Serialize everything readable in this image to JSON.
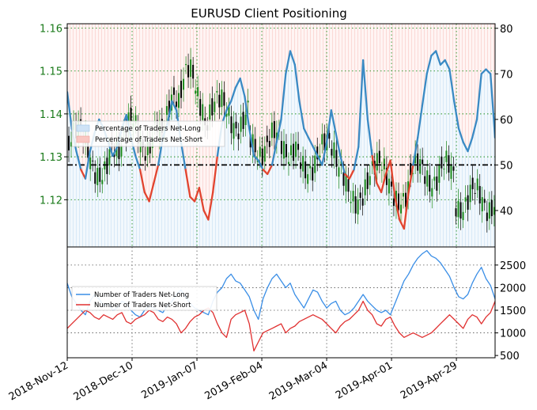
{
  "chart_data": {
    "type": "line",
    "title": "EURUSD Client Positioning",
    "x_ticks": [
      "2018-Nov-12",
      "2018-Dec-10",
      "2019-Jan-07",
      "2019-Feb-04",
      "2019-Mar-04",
      "2019-Apr-01",
      "2019-Apr-29"
    ],
    "top_panel": {
      "price_axis": {
        "label": "",
        "ticks": [
          "1.12",
          "1.13",
          "1.14",
          "1.15",
          "1.16"
        ],
        "range": [
          1.109,
          1.161
        ],
        "color": "#1a7a1a"
      },
      "percent_axis": {
        "label": "",
        "ticks": [
          "40",
          "50",
          "60",
          "70",
          "80"
        ],
        "range": [
          32,
          81
        ]
      },
      "reference_line": 50,
      "legend": {
        "placement": "upper-left",
        "entries": [
          "Percentage of Traders Net-Long",
          "Percentage of Traders Net-Short"
        ]
      },
      "series": [
        {
          "name": "Percentage of Traders Net-Long",
          "color": "#3a8ac4",
          "x": [
            0,
            2,
            4,
            6,
            8,
            10,
            12,
            14,
            16,
            18,
            20,
            22,
            24,
            26,
            28,
            30,
            32,
            34,
            36,
            38,
            40,
            42,
            44,
            46,
            48,
            50,
            52,
            54,
            56,
            58,
            60,
            62,
            64,
            66,
            68,
            70,
            72,
            74,
            76,
            78,
            80,
            82,
            84,
            86,
            88,
            90,
            92,
            94,
            96,
            98,
            100,
            102,
            104,
            106,
            108,
            110,
            112,
            114,
            116,
            118,
            120,
            122,
            124,
            126,
            128,
            130,
            132,
            134,
            136,
            138,
            140,
            142,
            144,
            146,
            148,
            150,
            152,
            154,
            156,
            158,
            160,
            162,
            164,
            166,
            168,
            170,
            172,
            174,
            176,
            178,
            180,
            182,
            184,
            186,
            188
          ],
          "values": [
            66,
            58,
            53,
            49,
            47,
            53,
            57,
            60,
            58,
            55,
            52,
            54,
            58,
            61,
            56,
            52,
            49,
            44,
            42,
            46,
            50,
            56,
            59,
            64,
            62,
            55,
            49,
            43,
            42,
            45,
            40,
            38,
            44,
            52,
            59,
            62,
            64,
            67,
            69,
            65,
            58,
            52,
            51,
            49,
            48,
            50,
            55,
            60,
            70,
            75,
            72,
            64,
            58,
            56,
            54,
            52,
            50,
            55,
            62,
            57,
            52,
            48,
            47,
            49,
            54,
            73,
            60,
            52,
            46,
            44,
            48,
            51,
            43,
            38,
            36,
            44,
            50,
            56,
            63,
            70,
            74,
            75,
            72,
            73,
            71,
            64,
            58,
            55,
            53,
            56,
            60,
            70,
            71,
            70,
            56
          ]
        },
        {
          "name": "Percentage of Traders Net-Short",
          "color": "#e2442f",
          "x": [
            0,
            2,
            4,
            6,
            8,
            10,
            12,
            14,
            16,
            18,
            20,
            22,
            24,
            26,
            28,
            30,
            32,
            34,
            36,
            38,
            40,
            42,
            44,
            46,
            48,
            50,
            52,
            54,
            56,
            58,
            60,
            62,
            64,
            66,
            68,
            70,
            72,
            74,
            76,
            78,
            80,
            82,
            84,
            86,
            88,
            90,
            92,
            94,
            96,
            98,
            100,
            102,
            104,
            106,
            108,
            110,
            112,
            114,
            116,
            118,
            120,
            122,
            124,
            126,
            128,
            130,
            132,
            134,
            136,
            138,
            140,
            142,
            144,
            146,
            148,
            150,
            152,
            154,
            156,
            158,
            160,
            162,
            164,
            166,
            168,
            170,
            172,
            174,
            176,
            178,
            180,
            182,
            184,
            186,
            188
          ],
          "values": [
            34,
            42,
            47,
            51,
            53,
            47,
            43,
            40,
            42,
            45,
            48,
            46,
            42,
            39,
            44,
            48,
            51,
            56,
            58,
            54,
            50,
            44,
            41,
            36,
            38,
            45,
            51,
            57,
            58,
            55,
            60,
            62,
            56,
            48,
            41,
            38,
            36,
            33,
            31,
            35,
            42,
            48,
            49,
            51,
            52,
            50,
            45,
            40,
            30,
            25,
            28,
            36,
            42,
            44,
            46,
            48,
            50,
            45,
            38,
            43,
            48,
            52,
            53,
            51,
            46,
            27,
            40,
            48,
            54,
            56,
            52,
            49,
            57,
            62,
            64,
            56,
            50,
            44,
            37,
            30,
            26,
            25,
            28,
            27,
            29,
            36,
            42,
            45,
            47,
            44,
            40,
            30,
            29,
            30,
            44
          ]
        }
      ]
    },
    "bottom_panel": {
      "axis": {
        "label": "",
        "ticks": [
          "500",
          "1000",
          "1500",
          "2000",
          "2500"
        ],
        "range": [
          450,
          2900
        ]
      },
      "legend": {
        "placement": "center-left",
        "entries": [
          "Number of Traders Net-Long",
          "Number of Traders Net-Short"
        ]
      },
      "series": [
        {
          "name": "Number of Traders Net-Long",
          "color": "#3a8ee6",
          "x": [
            0,
            2,
            4,
            6,
            8,
            10,
            12,
            14,
            16,
            18,
            20,
            22,
            24,
            26,
            28,
            30,
            32,
            34,
            36,
            38,
            40,
            42,
            44,
            46,
            48,
            50,
            52,
            54,
            56,
            58,
            60,
            62,
            64,
            66,
            68,
            70,
            72,
            74,
            76,
            78,
            80,
            82,
            84,
            86,
            88,
            90,
            92,
            94,
            96,
            98,
            100,
            102,
            104,
            106,
            108,
            110,
            112,
            114,
            116,
            118,
            120,
            122,
            124,
            126,
            128,
            130,
            132,
            134,
            136,
            138,
            140,
            142,
            144,
            146,
            148,
            150,
            152,
            154,
            156,
            158,
            160,
            162,
            164,
            166,
            168,
            170,
            172,
            174,
            176,
            178,
            180,
            182,
            184,
            186,
            188
          ],
          "values": [
            2100,
            1800,
            1650,
            1500,
            1400,
            1700,
            1850,
            1750,
            1600,
            1650,
            1500,
            1550,
            1700,
            1650,
            1500,
            1400,
            1350,
            1500,
            1600,
            1550,
            1500,
            1450,
            1600,
            1700,
            1850,
            1950,
            1800,
            1650,
            1550,
            1500,
            1450,
            1400,
            1700,
            1900,
            2000,
            2200,
            2300,
            2150,
            2100,
            1950,
            1800,
            1500,
            1300,
            1750,
            2000,
            2200,
            2300,
            2150,
            2000,
            2100,
            1850,
            1700,
            1550,
            1750,
            1950,
            1900,
            1700,
            1550,
            1650,
            1700,
            1500,
            1400,
            1450,
            1550,
            1700,
            1850,
            1700,
            1600,
            1500,
            1450,
            1500,
            1400,
            1650,
            1900,
            2150,
            2300,
            2500,
            2650,
            2750,
            2820,
            2700,
            2650,
            2550,
            2400,
            2250,
            2000,
            1800,
            1750,
            1850,
            2100,
            2300,
            2450,
            2200,
            2050,
            1750
          ]
        },
        {
          "name": "Number of Traders Net-Short",
          "color": "#e03030",
          "x": [
            0,
            2,
            4,
            6,
            8,
            10,
            12,
            14,
            16,
            18,
            20,
            22,
            24,
            26,
            28,
            30,
            32,
            34,
            36,
            38,
            40,
            42,
            44,
            46,
            48,
            50,
            52,
            54,
            56,
            58,
            60,
            62,
            64,
            66,
            68,
            70,
            72,
            74,
            76,
            78,
            80,
            82,
            84,
            86,
            88,
            90,
            92,
            94,
            96,
            98,
            100,
            102,
            104,
            106,
            108,
            110,
            112,
            114,
            116,
            118,
            120,
            122,
            124,
            126,
            128,
            130,
            132,
            134,
            136,
            138,
            140,
            142,
            144,
            146,
            148,
            150,
            152,
            154,
            156,
            158,
            160,
            162,
            164,
            166,
            168,
            170,
            172,
            174,
            176,
            178,
            180,
            182,
            184,
            186,
            188
          ],
          "values": [
            1100,
            1200,
            1300,
            1400,
            1500,
            1450,
            1350,
            1300,
            1400,
            1350,
            1300,
            1400,
            1450,
            1250,
            1200,
            1300,
            1350,
            1400,
            1500,
            1450,
            1300,
            1250,
            1350,
            1300,
            1200,
            1000,
            1100,
            1250,
            1350,
            1400,
            1500,
            1550,
            1450,
            1200,
            1000,
            900,
            1300,
            1400,
            1450,
            1500,
            1200,
            600,
            800,
            1000,
            1050,
            1100,
            1150,
            1200,
            1000,
            1100,
            1150,
            1250,
            1300,
            1350,
            1400,
            1350,
            1300,
            1200,
            1100,
            1000,
            1150,
            1250,
            1300,
            1400,
            1500,
            1700,
            1500,
            1400,
            1200,
            1150,
            1300,
            1350,
            1150,
            1000,
            900,
            950,
            1000,
            950,
            900,
            950,
            1000,
            1100,
            1200,
            1300,
            1400,
            1300,
            1200,
            1100,
            1300,
            1400,
            1350,
            1200,
            1350,
            1450,
            1700
          ]
        }
      ]
    }
  }
}
